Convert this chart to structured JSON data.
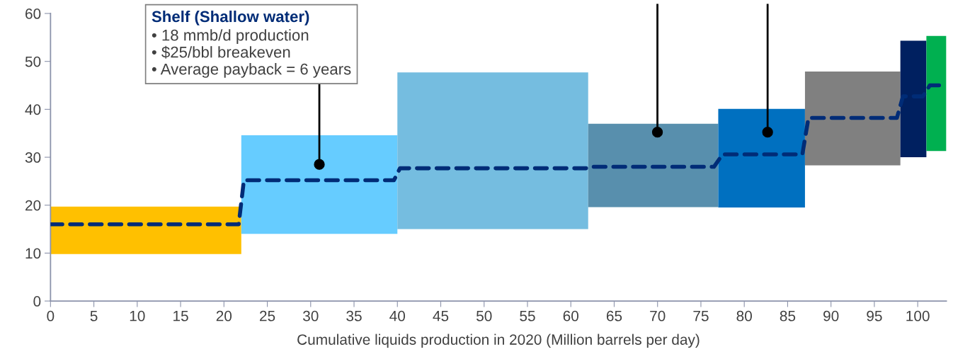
{
  "chart_data": {
    "type": "histogram",
    "xlabel": "Cumulative liquids production in 2020 (Million barrels per day)",
    "xlim": [
      0,
      103.3
    ],
    "ylim": [
      0,
      60
    ],
    "xticks": [
      0,
      5,
      10,
      15,
      20,
      25,
      30,
      35,
      40,
      45,
      50,
      55,
      60,
      65,
      70,
      75,
      80,
      85,
      90,
      95,
      100
    ],
    "yticks": [
      0,
      10,
      20,
      30,
      40,
      50,
      60
    ],
    "grid": false,
    "legend": false,
    "bins": [
      0,
      22,
      40,
      62,
      77,
      87,
      98,
      101,
      103.3
    ],
    "series": [
      {
        "base": [
          9.8,
          14,
          15,
          19.6,
          19.5,
          28.3,
          30,
          31.3
        ],
        "values": [
          9.9,
          20.6,
          32.7,
          17.4,
          20.6,
          19.6,
          24.3,
          24.0
        ],
        "colors": [
          "#ffc000",
          "#66ccff",
          "#75bde0",
          "#588fad",
          "#0070c0",
          "#808080",
          "#002060",
          "#00b050"
        ]
      },
      {
        "type": "line",
        "color": "#002c77",
        "line_style": "dashed",
        "marker": "none",
        "x": [
          0,
          21.7,
          22.3,
          39.6,
          40.3,
          61.8,
          62.2,
          76.5,
          77.5,
          86.7,
          87.4,
          97.6,
          98.3,
          100.6,
          101.4,
          103.3
        ],
        "values": [
          16,
          16,
          25.2,
          25.2,
          27.7,
          27.7,
          28.0,
          28.0,
          30.6,
          30.6,
          38.2,
          38.2,
          42.7,
          42.7,
          45.0,
          45.0
        ]
      }
    ],
    "annotations": [
      {
        "text": "Shelf (Shallow water)\n• 18 mmb/d production\n• $25/bbl breakeven\n• Average payback = 6 years",
        "x": 31,
        "y": 28.5
      }
    ]
  }
}
